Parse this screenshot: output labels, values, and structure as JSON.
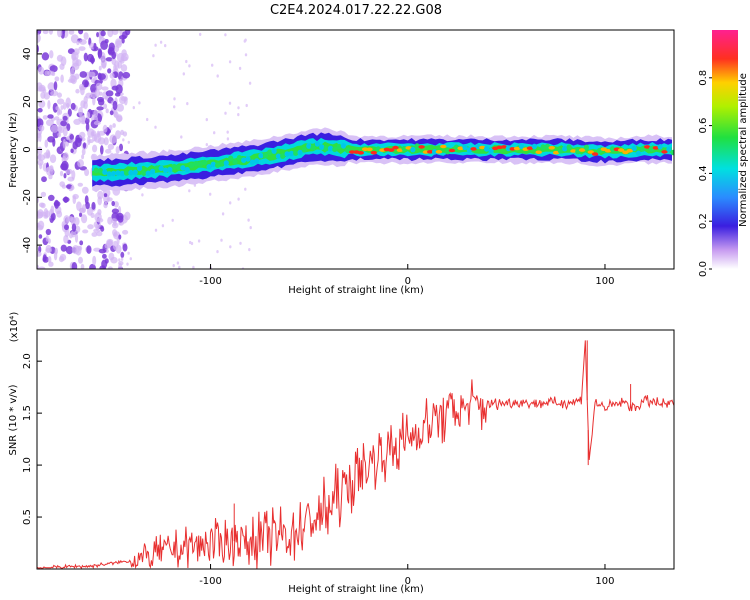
{
  "title": "C2E4.2024.017.22.22.G08",
  "chart_data": [
    {
      "type": "heatmap",
      "title": "C2E4.2024.017.22.22.G08",
      "xlabel": "Height of straight line (km)",
      "ylabel": "Frequency (Hz)",
      "xlim": [
        -188,
        135
      ],
      "ylim": [
        -50,
        50
      ],
      "x_ticks": [
        -100,
        0,
        100
      ],
      "y_ticks": [
        -40,
        -20,
        0,
        20,
        40
      ],
      "x_tick_labels": [
        "-100",
        "0",
        "100"
      ],
      "y_tick_labels": [
        "-40",
        "-20",
        "0",
        "20",
        "40"
      ],
      "ridge": {
        "x": [
          -160,
          -140,
          -120,
          -100,
          -80,
          -60,
          -50,
          -40,
          -30,
          -20,
          0,
          20,
          50,
          80,
          100,
          120,
          135
        ],
        "y": [
          -10,
          -9,
          -8,
          -6,
          -4,
          -1,
          1,
          1,
          0,
          0,
          0,
          0,
          0,
          0,
          -1,
          0,
          0
        ]
      },
      "colorbar": {
        "label": "Normalized spectral amplitude",
        "range": [
          0.0,
          1.0
        ],
        "ticks": [
          0.0,
          0.2,
          0.4,
          0.6,
          0.8
        ],
        "tick_labels": [
          "0.0",
          "0.2",
          "0.4",
          "0.6",
          "0.8"
        ]
      }
    },
    {
      "type": "line",
      "xlabel": "Height of straight line (km)",
      "ylabel": "SNR (10 * v/v)",
      "multiplier": "(x10⁴)",
      "xlim": [
        -188,
        135
      ],
      "ylim": [
        0,
        2.3
      ],
      "x_ticks": [
        -100,
        0,
        100
      ],
      "y_ticks": [
        0.5,
        1.0,
        1.5,
        2.0
      ],
      "x_tick_labels": [
        "-100",
        "0",
        "100"
      ],
      "y_tick_labels": [
        "0.5",
        "1.0",
        "1.5",
        "2.0"
      ],
      "series": [
        {
          "name": "SNR",
          "color": "#e83030",
          "x": [
            -188,
            -160,
            -140,
            -130,
            -120,
            -110,
            -100,
            -90,
            -80,
            -70,
            -60,
            -50,
            -40,
            -30,
            -20,
            -10,
            0,
            10,
            20,
            30,
            40,
            50,
            60,
            70,
            80,
            88,
            90,
            92,
            95,
            100,
            105,
            110,
            115,
            120,
            125,
            130,
            135
          ],
          "y": [
            0.01,
            0.03,
            0.08,
            0.13,
            0.18,
            0.22,
            0.25,
            0.27,
            0.26,
            0.3,
            0.35,
            0.45,
            0.6,
            0.8,
            1.0,
            1.15,
            1.25,
            1.4,
            1.5,
            1.55,
            1.58,
            1.6,
            1.6,
            1.6,
            1.6,
            1.62,
            2.2,
            1.05,
            1.6,
            1.55,
            1.58,
            1.6,
            1.55,
            1.62,
            1.6,
            1.58,
            1.6
          ]
        }
      ],
      "spikes": [
        {
          "x": -88,
          "y": 0.63
        },
        {
          "x": 91,
          "y": 2.2
        },
        {
          "x": 91.5,
          "y": 1.0
        },
        {
          "x": 113,
          "y": 1.78
        }
      ]
    }
  ]
}
